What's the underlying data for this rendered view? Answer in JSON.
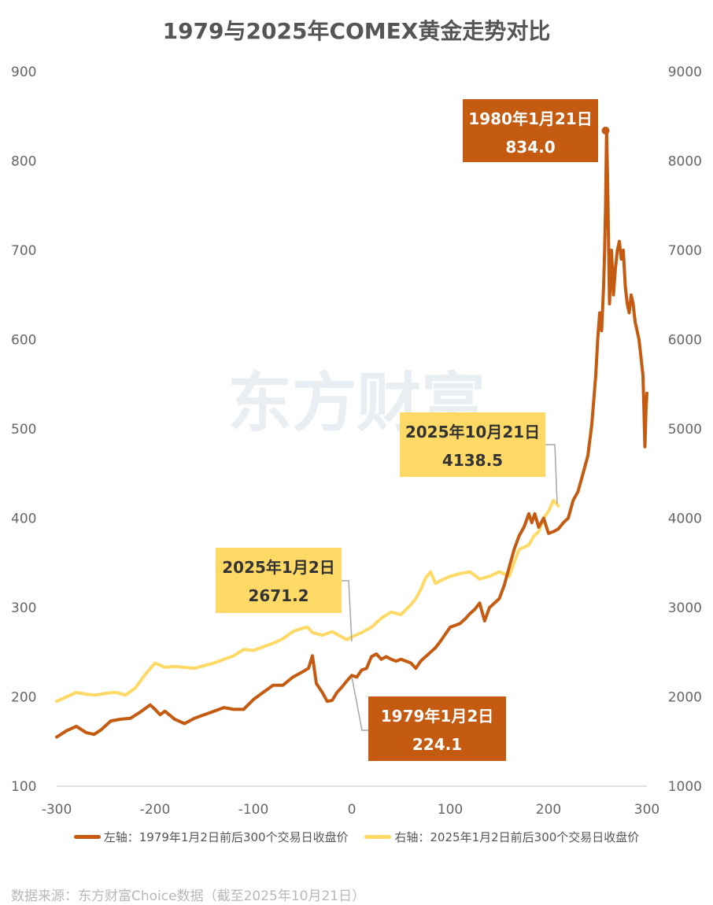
{
  "chart_data": {
    "type": "line",
    "title": "1979与2025年COMEX黄金走势对比",
    "watermark": "东方财富",
    "x_ticks": [
      "-300",
      "-200",
      "-100",
      "0",
      "100",
      "200",
      "300"
    ],
    "xlim": [
      -300,
      300
    ],
    "y_left_ticks": [
      "900",
      "800",
      "700",
      "600",
      "500",
      "400",
      "300",
      "200",
      "100"
    ],
    "y_left_lim": [
      100,
      900
    ],
    "y_right_ticks": [
      "9000",
      "8000",
      "7000",
      "6000",
      "5000",
      "4000",
      "3000",
      "2000",
      "1000"
    ],
    "y_right_lim": [
      1000,
      9000
    ],
    "series": [
      {
        "name": "左轴：1979年1月2日前后300个交易日收盘价",
        "axis": "left",
        "color": "#C55A11",
        "x": [
          -300,
          -290,
          -280,
          -270,
          -262,
          -255,
          -245,
          -235,
          -225,
          -215,
          -205,
          -200,
          -195,
          -190,
          -180,
          -170,
          -160,
          -150,
          -140,
          -130,
          -120,
          -110,
          -100,
          -90,
          -80,
          -70,
          -60,
          -50,
          -44,
          -40,
          -36,
          -30,
          -25,
          -20,
          -15,
          -10,
          -5,
          0,
          5,
          10,
          15,
          20,
          25,
          30,
          35,
          40,
          45,
          50,
          55,
          60,
          65,
          70,
          75,
          80,
          85,
          90,
          95,
          100,
          105,
          110,
          115,
          120,
          125,
          130,
          135,
          140,
          145,
          150,
          155,
          160,
          165,
          170,
          175,
          180,
          183,
          186,
          190,
          195,
          200,
          205,
          210,
          215,
          220,
          225,
          230,
          235,
          240,
          244,
          248,
          250,
          252,
          254,
          256,
          257,
          258,
          259,
          260,
          262,
          264,
          266,
          268,
          270,
          272,
          274,
          276,
          278,
          280,
          282,
          284,
          286,
          288,
          290,
          292,
          294,
          296,
          297,
          298,
          299,
          300
        ],
        "values": [
          155,
          162,
          167,
          160,
          158,
          163,
          173,
          175,
          176,
          183,
          191,
          186,
          180,
          184,
          175,
          170,
          176,
          180,
          184,
          188,
          186,
          186,
          197,
          205,
          213,
          213,
          222,
          228,
          232,
          246,
          215,
          205,
          195,
          196,
          205,
          211,
          218,
          224,
          222,
          230,
          232,
          245,
          248,
          242,
          245,
          242,
          240,
          242,
          240,
          238,
          232,
          240,
          245,
          250,
          255,
          262,
          270,
          278,
          280,
          282,
          287,
          293,
          298,
          305,
          285,
          300,
          305,
          310,
          325,
          345,
          365,
          380,
          390,
          405,
          395,
          405,
          390,
          400,
          383,
          385,
          388,
          395,
          400,
          420,
          430,
          450,
          470,
          505,
          560,
          600,
          630,
          610,
          660,
          700,
          750,
          834,
          780,
          640,
          700,
          650,
          680,
          700,
          710,
          690,
          700,
          660,
          640,
          630,
          650,
          640,
          620,
          610,
          600,
          580,
          560,
          520,
          480,
          520,
          540
        ]
      },
      {
        "name": "右轴：2025年1月2日前后300个交易日收盘价",
        "axis": "right",
        "color": "#FFD966",
        "x": [
          -300,
          -290,
          -280,
          -270,
          -260,
          -250,
          -240,
          -230,
          -220,
          -210,
          -200,
          -190,
          -180,
          -170,
          -160,
          -150,
          -140,
          -130,
          -120,
          -110,
          -100,
          -90,
          -80,
          -70,
          -60,
          -50,
          -45,
          -40,
          -30,
          -20,
          -10,
          -5,
          0,
          10,
          20,
          30,
          40,
          50,
          60,
          65,
          70,
          75,
          80,
          85,
          90,
          100,
          110,
          120,
          130,
          140,
          150,
          160,
          170,
          180,
          185,
          190,
          195,
          200,
          205,
          210
        ],
        "values": [
          1950,
          2000,
          2050,
          2030,
          2020,
          2040,
          2050,
          2020,
          2100,
          2250,
          2380,
          2330,
          2340,
          2330,
          2320,
          2350,
          2380,
          2420,
          2460,
          2530,
          2520,
          2560,
          2600,
          2650,
          2730,
          2770,
          2780,
          2720,
          2690,
          2730,
          2670,
          2640,
          2671,
          2720,
          2780,
          2880,
          2950,
          2920,
          3030,
          3100,
          3200,
          3330,
          3400,
          3270,
          3300,
          3350,
          3380,
          3400,
          3320,
          3350,
          3400,
          3350,
          3650,
          3700,
          3800,
          3850,
          4000,
          4080,
          4200,
          4138
        ]
      }
    ],
    "annotations": [
      {
        "date": "1980年1月21日",
        "value": "834.0",
        "x": 258,
        "y": 834,
        "axis": "left",
        "fill": "#C55A11",
        "text_color": "#ffffff"
      },
      {
        "date": "2025年10月21日",
        "value": "4138.5",
        "x": 208,
        "y": 4138.5,
        "axis": "right",
        "fill": "#FFD966",
        "text_color": "#333333"
      },
      {
        "date": "2025年1月2日",
        "value": "2671.2",
        "x": 0,
        "y": 2671.2,
        "axis": "right",
        "fill": "#FFD966",
        "text_color": "#333333"
      },
      {
        "date": "1979年1月2日",
        "value": "224.1",
        "x": 0,
        "y": 224.1,
        "axis": "left",
        "fill": "#C55A11",
        "text_color": "#ffffff"
      }
    ],
    "legend_position": "bottom",
    "grid": false
  },
  "source": "数据来源：东方财富Choice数据（截至2025年10月21日）"
}
